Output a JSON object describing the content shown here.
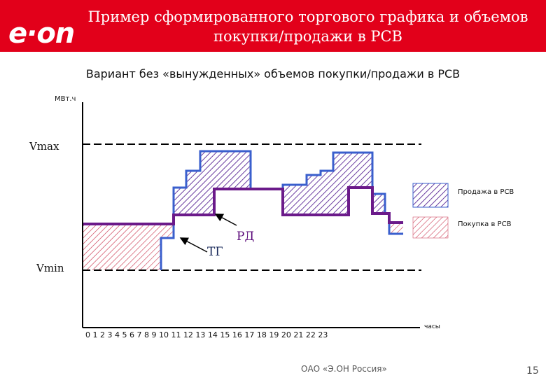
{
  "header": {
    "logo_text": "e·on",
    "title_line1": "Пример сформированного торгового графика и объемов",
    "title_line2": "покупки/продажи в РСВ",
    "brand_color": "#e2001a"
  },
  "subtitle": "Вариант без «вынужденных» объемов покупки/продажи в РСВ",
  "chart": {
    "y_unit": "МВт.ч",
    "vmax_label": "Vmax",
    "vmin_label": "Vmin",
    "x_unit": "часы",
    "hours": "0 1 2 3 4 5 6 7 8 9 10 11 12 13 14 15 16 17 18 19 20 21 22 23",
    "rd_label": "РД",
    "tg_label": "ТГ",
    "legend": [
      {
        "label": "Продажа в РСВ",
        "color": "#6a3da0"
      },
      {
        "label": "Покупка в РСВ",
        "color": "#c8304a"
      }
    ],
    "rd_color": "#6b1a8a",
    "tg_color": "#3a5fcd"
  },
  "footer": {
    "company": "ОАО «Э.ОН Россия»",
    "page": "15"
  }
}
